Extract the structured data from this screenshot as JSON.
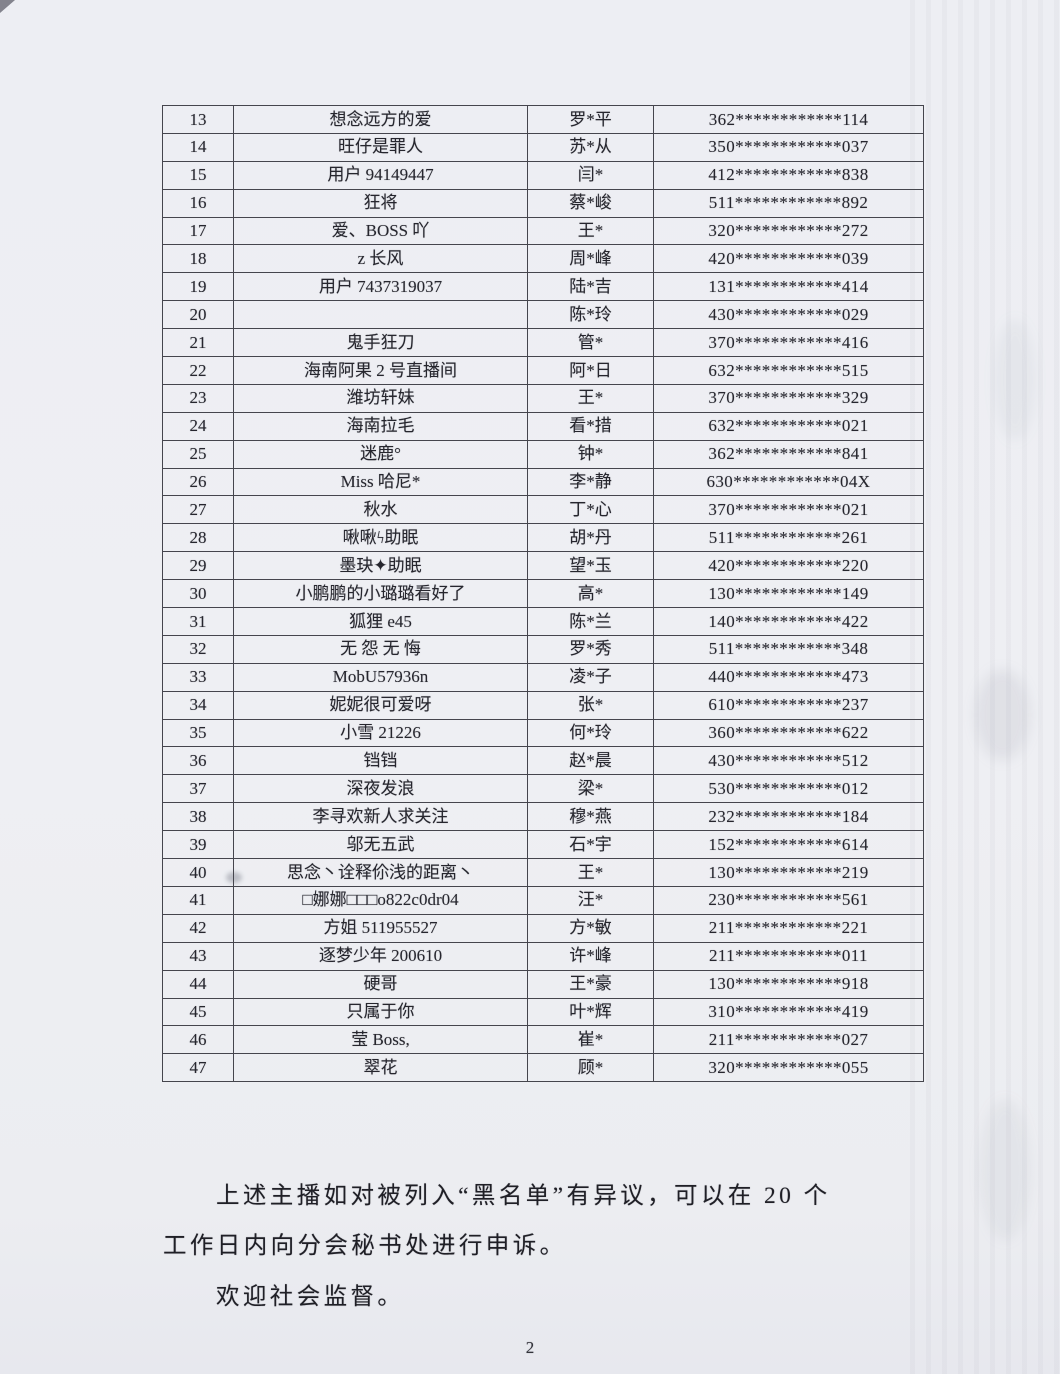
{
  "document": {
    "page_number": "2",
    "paragraph_lines": [
      "上述主播如对被列入“黑名单”有异议，可以在 20 个",
      "工作日内向分会秘书处进行申诉。",
      "欢迎社会监督。"
    ]
  },
  "table": {
    "rows": [
      {
        "no": "13",
        "nickname": "想念远方的爱",
        "name": "罗*平",
        "id_number": "362************114"
      },
      {
        "no": "14",
        "nickname": "旺仔是罪人",
        "name": "苏*从",
        "id_number": "350************037"
      },
      {
        "no": "15",
        "nickname": "用户 94149447",
        "name": "闫*",
        "id_number": "412************838"
      },
      {
        "no": "16",
        "nickname": "狂将",
        "name": "蔡*峻",
        "id_number": "511************892"
      },
      {
        "no": "17",
        "nickname": "爱、BOSS 吖",
        "name": "王*",
        "id_number": "320************272"
      },
      {
        "no": "18",
        "nickname": "z 长风",
        "name": "周*峰",
        "id_number": "420************039"
      },
      {
        "no": "19",
        "nickname": "用户 7437319037",
        "name": "陆*吉",
        "id_number": "131************414"
      },
      {
        "no": "20",
        "nickname": "",
        "name": "陈*玲",
        "id_number": "430************029"
      },
      {
        "no": "21",
        "nickname": "鬼手狂刀",
        "name": "管*",
        "id_number": "370************416"
      },
      {
        "no": "22",
        "nickname": "海南阿果 2 号直播间",
        "name": "阿*日",
        "id_number": "632************515"
      },
      {
        "no": "23",
        "nickname": "潍坊轩妹",
        "name": "王*",
        "id_number": "370************329"
      },
      {
        "no": "24",
        "nickname": "海南拉毛",
        "name": "看*措",
        "id_number": "632************021"
      },
      {
        "no": "25",
        "nickname": "迷鹿°",
        "name": "钟*",
        "id_number": "362************841"
      },
      {
        "no": "26",
        "nickname": "Miss 哈尼*",
        "name": "李*静",
        "id_number": "630************04X"
      },
      {
        "no": "27",
        "nickname": "秋水",
        "name": "丁*心",
        "id_number": "370************021"
      },
      {
        "no": "28",
        "nickname": "啾啾ϟ助眠",
        "name": "胡*丹",
        "id_number": "511************261"
      },
      {
        "no": "29",
        "nickname": "墨玦✦助眠",
        "name": "望*玉",
        "id_number": "420************220"
      },
      {
        "no": "30",
        "nickname": "小鹏鹏的小璐璐看好了",
        "name": "高*",
        "id_number": "130************149"
      },
      {
        "no": "31",
        "nickname": "狐狸 e45",
        "name": "陈*兰",
        "id_number": "140************422"
      },
      {
        "no": "32",
        "nickname": "无 怨 无 悔",
        "name": "罗*秀",
        "id_number": "511************348"
      },
      {
        "no": "33",
        "nickname": "MobU57936n",
        "name": "凌*子",
        "id_number": "440************473"
      },
      {
        "no": "34",
        "nickname": "妮妮很可爱呀",
        "name": "张*",
        "id_number": "610************237"
      },
      {
        "no": "35",
        "nickname": "小雪 21226",
        "name": "何*玲",
        "id_number": "360************622"
      },
      {
        "no": "36",
        "nickname": "铛铛",
        "name": "赵*晨",
        "id_number": "430************512"
      },
      {
        "no": "37",
        "nickname": "深夜发浪",
        "name": "梁*",
        "id_number": "530************012"
      },
      {
        "no": "38",
        "nickname": "李寻欢新人求关注",
        "name": "穆*燕",
        "id_number": "232************184"
      },
      {
        "no": "39",
        "nickname": "邬无五武",
        "name": "石*宇",
        "id_number": "152************614"
      },
      {
        "no": "40",
        "nickname": "思念丶诠释伱浅的距离丶",
        "name": "王*",
        "id_number": "130************219"
      },
      {
        "no": "41",
        "nickname": "□娜娜□□□o822c0dr04",
        "name": "汪*",
        "id_number": "230************561"
      },
      {
        "no": "42",
        "nickname": "方姐 511955527",
        "name": "方*敏",
        "id_number": "211************221"
      },
      {
        "no": "43",
        "nickname": "逐梦少年 200610",
        "name": "许*峰",
        "id_number": "211************011"
      },
      {
        "no": "44",
        "nickname": "硬哥",
        "name": "王*豪",
        "id_number": "130************918"
      },
      {
        "no": "45",
        "nickname": "只属于你",
        "name": "叶*辉",
        "id_number": "310************419"
      },
      {
        "no": "46",
        "nickname": "莹 Boss,",
        "name": "崔*",
        "id_number": "211************027"
      },
      {
        "no": "47",
        "nickname": "翠花",
        "name": "顾*",
        "id_number": "320************055"
      }
    ]
  },
  "colors": {
    "page_background": "#edeef3",
    "table_line": "#45454d",
    "text": "#26262e"
  }
}
